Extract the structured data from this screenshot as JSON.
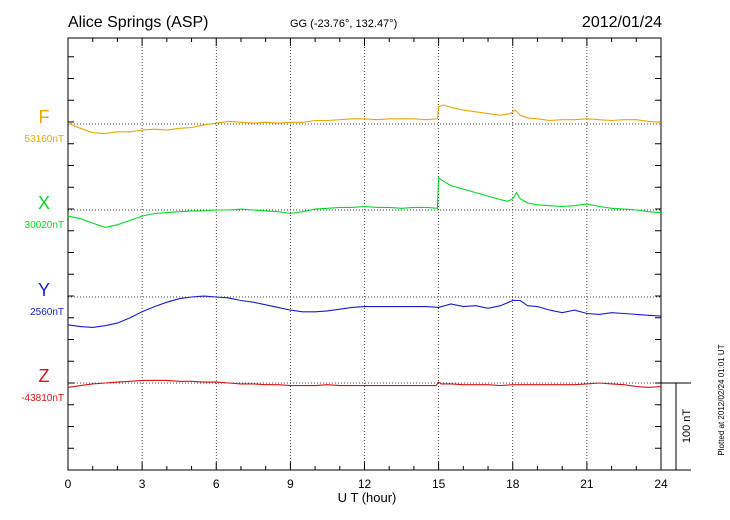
{
  "header": {
    "station": "Alice Springs (ASP)",
    "coords": "GG (-23.76°, 132.47°)",
    "date": "2012/01/24"
  },
  "footer": {
    "plotted": "Plotted at 2012/02/24 01:01  UT",
    "scale": "100 nT"
  },
  "chart_data": {
    "type": "line",
    "xlabel": "U T (hour)",
    "xlim": [
      0,
      24
    ],
    "xticks": [
      "0",
      "3",
      "6",
      "9",
      "12",
      "15",
      "18",
      "21",
      "24"
    ],
    "grid": true,
    "scale_nT": 100,
    "series": [
      {
        "name": "F",
        "baseline_label": "53160nT",
        "baseline": 53160,
        "color": "#e8a800",
        "points": [
          [
            0,
            53161
          ],
          [
            0.5,
            53155
          ],
          [
            1,
            53150
          ],
          [
            1.5,
            53149
          ],
          [
            2,
            53151
          ],
          [
            2.5,
            53151
          ],
          [
            3,
            53153
          ],
          [
            3.5,
            53154
          ],
          [
            4,
            53153
          ],
          [
            4.5,
            53155
          ],
          [
            5,
            53156
          ],
          [
            5.5,
            53159
          ],
          [
            6,
            53161
          ],
          [
            6.5,
            53163
          ],
          [
            7,
            53162
          ],
          [
            7.5,
            53161
          ],
          [
            8,
            53162
          ],
          [
            8.5,
            53161
          ],
          [
            9,
            53162
          ],
          [
            9.5,
            53162
          ],
          [
            10,
            53164
          ],
          [
            10.5,
            53164
          ],
          [
            11,
            53165
          ],
          [
            11.5,
            53166
          ],
          [
            12,
            53166
          ],
          [
            12.5,
            53165
          ],
          [
            13,
            53166
          ],
          [
            13.5,
            53166
          ],
          [
            14,
            53166
          ],
          [
            14.5,
            53165
          ],
          [
            14.95,
            53166
          ],
          [
            15,
            53180
          ],
          [
            15.2,
            53182
          ],
          [
            15.5,
            53179
          ],
          [
            16,
            53176
          ],
          [
            16.5,
            53174
          ],
          [
            17,
            53172
          ],
          [
            17.5,
            53170
          ],
          [
            17.9,
            53172
          ],
          [
            18.1,
            53176
          ],
          [
            18.3,
            53170
          ],
          [
            18.6,
            53167
          ],
          [
            19,
            53166
          ],
          [
            19.5,
            53164
          ],
          [
            20,
            53165
          ],
          [
            20.5,
            53165
          ],
          [
            21,
            53166
          ],
          [
            21.5,
            53165
          ],
          [
            22,
            53164
          ],
          [
            22.5,
            53165
          ],
          [
            23,
            53165
          ],
          [
            23.5,
            53163
          ],
          [
            24,
            53162
          ]
        ]
      },
      {
        "name": "X",
        "baseline_label": "30020nT",
        "baseline": 30020,
        "color": "#00dd22",
        "points": [
          [
            0,
            30013
          ],
          [
            0.5,
            30010
          ],
          [
            1,
            30005
          ],
          [
            1.5,
            30000
          ],
          [
            2,
            30003
          ],
          [
            2.5,
            30008
          ],
          [
            3,
            30013
          ],
          [
            3.5,
            30016
          ],
          [
            4,
            30017
          ],
          [
            4.5,
            30018
          ],
          [
            5,
            30019
          ],
          [
            5.5,
            30019
          ],
          [
            6,
            30020
          ],
          [
            6.5,
            30020
          ],
          [
            7,
            30021
          ],
          [
            7.5,
            30020
          ],
          [
            8,
            30019
          ],
          [
            8.5,
            30018
          ],
          [
            9,
            30016
          ],
          [
            9.5,
            30018
          ],
          [
            10,
            30021
          ],
          [
            10.5,
            30022
          ],
          [
            11,
            30023
          ],
          [
            11.5,
            30023
          ],
          [
            12,
            30024
          ],
          [
            12.5,
            30023
          ],
          [
            13,
            30023
          ],
          [
            13.5,
            30022
          ],
          [
            14,
            30023
          ],
          [
            14.5,
            30023
          ],
          [
            14.95,
            30022
          ],
          [
            15,
            30057
          ],
          [
            15.2,
            30053
          ],
          [
            15.5,
            30048
          ],
          [
            16,
            30044
          ],
          [
            16.5,
            30040
          ],
          [
            17,
            30036
          ],
          [
            17.5,
            30032
          ],
          [
            17.8,
            30030
          ],
          [
            18,
            30033
          ],
          [
            18.15,
            30040
          ],
          [
            18.3,
            30033
          ],
          [
            18.6,
            30028
          ],
          [
            19,
            30026
          ],
          [
            19.5,
            30025
          ],
          [
            20,
            30024
          ],
          [
            20.5,
            30025
          ],
          [
            21,
            30027
          ],
          [
            21.5,
            30024
          ],
          [
            22,
            30022
          ],
          [
            22.5,
            30021
          ],
          [
            23,
            30020
          ],
          [
            23.5,
            30018
          ],
          [
            24,
            30017
          ]
        ]
      },
      {
        "name": "Y",
        "baseline_label": "2560nT",
        "baseline": 2560,
        "color": "#1a1ad6",
        "points": [
          [
            0,
            2528
          ],
          [
            0.5,
            2526
          ],
          [
            1,
            2525
          ],
          [
            1.5,
            2527
          ],
          [
            2,
            2530
          ],
          [
            2.5,
            2536
          ],
          [
            3,
            2543
          ],
          [
            3.5,
            2549
          ],
          [
            4,
            2554
          ],
          [
            4.5,
            2558
          ],
          [
            5,
            2560
          ],
          [
            5.5,
            2561
          ],
          [
            6,
            2560
          ],
          [
            6.5,
            2559
          ],
          [
            7,
            2556
          ],
          [
            7.5,
            2554
          ],
          [
            8,
            2551
          ],
          [
            8.5,
            2548
          ],
          [
            9,
            2545
          ],
          [
            9.5,
            2543
          ],
          [
            10,
            2543
          ],
          [
            10.5,
            2544
          ],
          [
            11,
            2546
          ],
          [
            11.5,
            2548
          ],
          [
            12,
            2549
          ],
          [
            12.5,
            2549
          ],
          [
            13,
            2549
          ],
          [
            13.5,
            2549
          ],
          [
            14,
            2549
          ],
          [
            14.5,
            2549
          ],
          [
            15,
            2548
          ],
          [
            15.5,
            2552
          ],
          [
            16,
            2549
          ],
          [
            16.5,
            2550
          ],
          [
            17,
            2547
          ],
          [
            17.5,
            2550
          ],
          [
            18,
            2556
          ],
          [
            18.3,
            2556
          ],
          [
            18.6,
            2550
          ],
          [
            19,
            2549
          ],
          [
            19.5,
            2545
          ],
          [
            20,
            2542
          ],
          [
            20.5,
            2545
          ],
          [
            21,
            2541
          ],
          [
            21.5,
            2540
          ],
          [
            22,
            2542
          ],
          [
            22.5,
            2541
          ],
          [
            23,
            2540
          ],
          [
            23.5,
            2539
          ],
          [
            24,
            2538
          ]
        ]
      },
      {
        "name": "Z",
        "baseline_label": "-43810nT",
        "baseline": -43810,
        "color": "#dd1111",
        "points": [
          [
            0,
            -43815
          ],
          [
            0.5,
            -43813
          ],
          [
            1,
            -43811
          ],
          [
            1.5,
            -43810
          ],
          [
            2,
            -43809
          ],
          [
            2.5,
            -43808
          ],
          [
            3,
            -43807
          ],
          [
            3.5,
            -43807
          ],
          [
            4,
            -43807
          ],
          [
            4.5,
            -43808
          ],
          [
            5,
            -43808
          ],
          [
            5.5,
            -43809
          ],
          [
            6,
            -43809
          ],
          [
            6.5,
            -43810
          ],
          [
            7,
            -43811
          ],
          [
            7.5,
            -43811
          ],
          [
            8,
            -43812
          ],
          [
            8.5,
            -43812
          ],
          [
            9,
            -43813
          ],
          [
            9.5,
            -43813
          ],
          [
            10,
            -43813
          ],
          [
            10.5,
            -43812
          ],
          [
            11,
            -43813
          ],
          [
            11.5,
            -43813
          ],
          [
            12,
            -43813
          ],
          [
            12.5,
            -43813
          ],
          [
            13,
            -43813
          ],
          [
            13.5,
            -43813
          ],
          [
            14,
            -43813
          ],
          [
            14.5,
            -43813
          ],
          [
            14.9,
            -43813
          ],
          [
            15,
            -43809
          ],
          [
            15.1,
            -43811
          ],
          [
            15.5,
            -43811
          ],
          [
            16,
            -43812
          ],
          [
            16.5,
            -43812
          ],
          [
            17,
            -43812
          ],
          [
            17.5,
            -43813
          ],
          [
            18,
            -43812
          ],
          [
            18.5,
            -43812
          ],
          [
            19,
            -43812
          ],
          [
            19.5,
            -43812
          ],
          [
            20,
            -43812
          ],
          [
            20.5,
            -43812
          ],
          [
            21,
            -43811
          ],
          [
            21.5,
            -43810
          ],
          [
            22,
            -43811
          ],
          [
            22.5,
            -43812
          ],
          [
            23,
            -43814
          ],
          [
            23.5,
            -43815
          ],
          [
            24,
            -43814
          ]
        ]
      }
    ]
  }
}
